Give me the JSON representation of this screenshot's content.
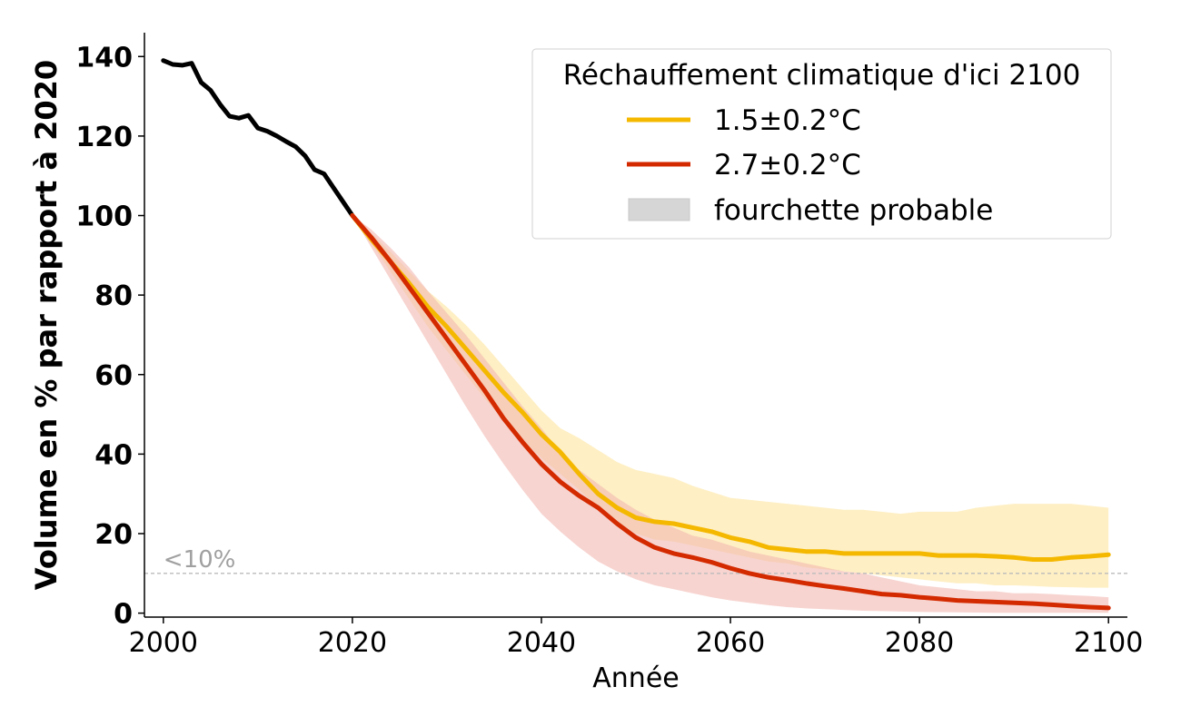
{
  "chart_data": {
    "type": "line",
    "xlabel": "Année",
    "ylabel": "Volume en % par rapport à 2020",
    "xlim": [
      1998,
      2102
    ],
    "ylim": [
      -1,
      146
    ],
    "xticks": [
      2000,
      2020,
      2040,
      2060,
      2080,
      2100
    ],
    "yticks": [
      0,
      20,
      40,
      60,
      80,
      100,
      120,
      140
    ],
    "grid": false,
    "legend": {
      "title": "Réchauffement climatique d'ici 2100",
      "placement": "top-right",
      "entries": [
        "1.5±0.2°C",
        "2.7±0.2°C",
        "fourchette probable"
      ]
    },
    "threshold": {
      "y": 10,
      "label": "<10%",
      "color": "#bbbbbb"
    },
    "colors": {
      "historical": "#000000",
      "scenario_15": "#f5b800",
      "scenario_15_band": "#fde9b0",
      "scenario_27": "#d42a00",
      "scenario_27_band": "#f2b7b1",
      "band_legend": "#d6d6d6"
    },
    "historical": {
      "x": [
        2000,
        2001,
        2002,
        2003,
        2004,
        2005,
        2006,
        2007,
        2008,
        2009,
        2010,
        2011,
        2012,
        2013,
        2014,
        2015,
        2016,
        2017,
        2018,
        2019,
        2020
      ],
      "y": [
        139,
        138,
        137.8,
        138.3,
        133.5,
        131.5,
        128,
        125,
        124.5,
        125.2,
        122,
        121.2,
        120,
        118.6,
        117.3,
        115,
        111.5,
        110.5,
        107,
        103.5,
        100
      ]
    },
    "series": [
      {
        "name": "1.5±0.2°C",
        "x": [
          2020,
          2022,
          2024,
          2026,
          2028,
          2030,
          2032,
          2034,
          2036,
          2038,
          2040,
          2042,
          2044,
          2046,
          2048,
          2050,
          2052,
          2054,
          2056,
          2058,
          2060,
          2062,
          2064,
          2066,
          2068,
          2070,
          2072,
          2074,
          2076,
          2078,
          2080,
          2082,
          2084,
          2086,
          2088,
          2090,
          2092,
          2094,
          2096,
          2098,
          2100
        ],
        "y": [
          100,
          94,
          88.5,
          83,
          77,
          72,
          66.5,
          61,
          55.5,
          50.5,
          45,
          40.5,
          35,
          30,
          26.5,
          24,
          23,
          22.5,
          21.5,
          20.5,
          19,
          18,
          16.5,
          16,
          15.5,
          15.5,
          15,
          15,
          15,
          15,
          15,
          14.5,
          14.5,
          14.5,
          14.3,
          14,
          13.5,
          13.5,
          14,
          14.3,
          14.7
        ],
        "low": [
          100,
          93,
          86,
          79,
          72,
          66,
          60,
          54,
          48.5,
          43.5,
          39,
          35,
          31,
          26.5,
          23,
          20,
          18.5,
          18,
          17,
          16,
          15,
          14,
          13,
          12.5,
          11.5,
          11,
          10.5,
          10,
          9.5,
          9,
          8.5,
          8,
          7.5,
          7.5,
          7,
          7,
          6.8,
          6.6,
          6.5,
          6.4,
          6.4
        ],
        "high": [
          100,
          95.5,
          91,
          86,
          81,
          77,
          72.5,
          67.5,
          62,
          56.5,
          51,
          46.5,
          44,
          41,
          38,
          36,
          35,
          34,
          32,
          30.5,
          29,
          28.5,
          28,
          27.5,
          27,
          26.5,
          26,
          26,
          25.5,
          25,
          25.5,
          25.5,
          25.5,
          26.5,
          27,
          27.5,
          27.5,
          27.5,
          27.5,
          27,
          26.5
        ]
      },
      {
        "name": "2.7±0.2°C",
        "x": [
          2020,
          2022,
          2024,
          2026,
          2028,
          2030,
          2032,
          2034,
          2036,
          2038,
          2040,
          2042,
          2044,
          2046,
          2048,
          2050,
          2052,
          2054,
          2056,
          2058,
          2060,
          2062,
          2064,
          2066,
          2068,
          2070,
          2072,
          2074,
          2076,
          2078,
          2080,
          2082,
          2084,
          2086,
          2088,
          2090,
          2092,
          2094,
          2096,
          2098,
          2100
        ],
        "y": [
          100,
          94.5,
          88.5,
          82,
          75.5,
          69,
          62.5,
          56,
          49,
          43,
          37.5,
          33,
          29.5,
          26.5,
          22.5,
          19,
          16.5,
          15,
          14,
          12.8,
          11.3,
          10,
          9,
          8.3,
          7.5,
          6.8,
          6.2,
          5.5,
          4.8,
          4.5,
          4,
          3.6,
          3.2,
          3,
          2.8,
          2.6,
          2.4,
          2.1,
          1.8,
          1.5,
          1.3
        ],
        "low": [
          100,
          92,
          84,
          76,
          68,
          60,
          52,
          44.5,
          37.5,
          31,
          25,
          20.5,
          16.5,
          13,
          10.5,
          8.5,
          7,
          6,
          5,
          4,
          3.2,
          2.6,
          2,
          1.5,
          1.2,
          1,
          0.8,
          0.6,
          0.5,
          0.4,
          0.3,
          0.25,
          0.2,
          0.15,
          0.1,
          0.1,
          0.1,
          0.1,
          0.1,
          0.1,
          0.1
        ],
        "high": [
          100,
          96.5,
          92,
          87,
          81,
          75.5,
          70,
          64,
          58,
          52,
          46.5,
          40.5,
          36,
          32.5,
          29,
          26,
          23.5,
          21.5,
          19.5,
          18.5,
          17,
          15.5,
          14.5,
          13.5,
          12.5,
          11.5,
          10.5,
          10,
          9,
          8,
          7,
          6.5,
          6,
          5.5,
          5.5,
          5,
          5,
          4.8,
          4.5,
          4.3,
          4
        ]
      }
    ]
  }
}
